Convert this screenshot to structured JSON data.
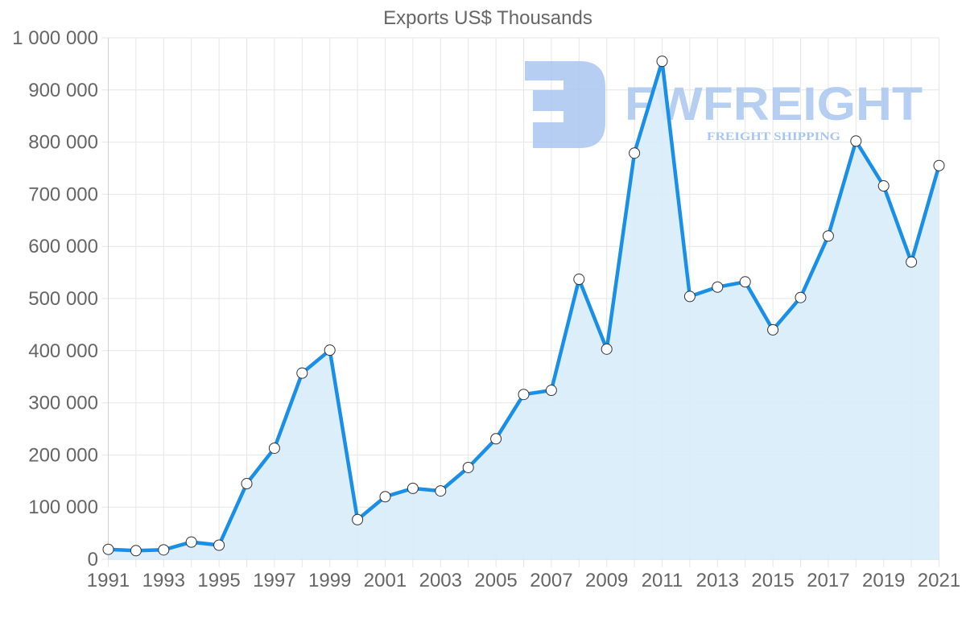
{
  "chart_data": {
    "type": "area",
    "title": "Exports US$ Thousands",
    "xlabel": "",
    "ylabel": "",
    "categories": [
      "1991",
      "1992",
      "1993",
      "1994",
      "1995",
      "1996",
      "1997",
      "1998",
      "1999",
      "2000",
      "2001",
      "2002",
      "2003",
      "2004",
      "2005",
      "2006",
      "2007",
      "2008",
      "2009",
      "2010",
      "2011",
      "2012",
      "2013",
      "2014",
      "2015",
      "2016",
      "2017",
      "2018",
      "2019",
      "2020",
      "2021"
    ],
    "series": [
      {
        "name": "Exports US$ Thousands",
        "values": [
          19000,
          16500,
          18000,
          33000,
          27000,
          145000,
          213000,
          357000,
          401000,
          76000,
          120000,
          136000,
          131000,
          176000,
          231000,
          316000,
          324000,
          537000,
          403000,
          779000,
          955000,
          504000,
          522000,
          532000,
          440000,
          502000,
          620000,
          802000,
          716000,
          570000,
          755000
        ]
      }
    ],
    "x_tick_labels": [
      "1991",
      "1993",
      "1995",
      "1997",
      "1999",
      "2001",
      "2003",
      "2005",
      "2007",
      "2009",
      "2011",
      "2013",
      "2015",
      "2017",
      "2019",
      "2021"
    ],
    "y_tick_labels": [
      "0",
      "100 000",
      "200 000",
      "300 000",
      "400 000",
      "500 000",
      "600 000",
      "700 000",
      "800 000",
      "900 000",
      "1 000 000"
    ],
    "y_ticks": [
      0,
      100000,
      200000,
      300000,
      400000,
      500000,
      600000,
      700000,
      800000,
      900000,
      1000000
    ],
    "ylim": [
      0,
      1000000
    ],
    "grid": true,
    "legend": "none",
    "colors": {
      "line": "#1a8fe8",
      "fill": "#d9ecfb",
      "marker_fill": "#ffffff",
      "marker_stroke": "#333333",
      "grid": "#e6e6e6",
      "axis_text": "#666666",
      "watermark": "#a9c6f0"
    }
  },
  "watermark": {
    "brand": "FWFREIGHT",
    "tagline": "FREIGHT SHIPPING"
  }
}
